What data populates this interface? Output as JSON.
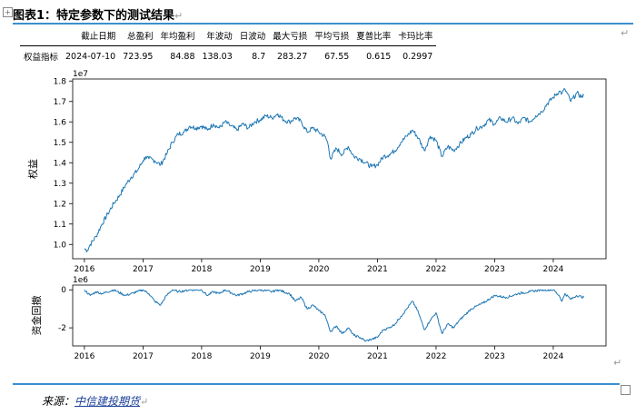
{
  "document": {
    "title": "图表1：特定参数下的测试结果",
    "para_mark": "↵",
    "source_prefix": "来源：",
    "source_org": "中信建投期货"
  },
  "metrics_table": {
    "headers": [
      "截止日期",
      "总盈利",
      "年均盈利",
      "年波动",
      "日波动",
      "最大亏损",
      "平均亏损",
      "夏普比率",
      "卡玛比率"
    ],
    "row_label": "权益指标",
    "values": [
      "2024-07-10",
      "723.95",
      "84.88",
      "138.03",
      "8.7",
      "283.27",
      "67.55",
      "0.615",
      "0.2997"
    ]
  },
  "chart_data": [
    {
      "type": "line",
      "ylabel": "权益",
      "y_scale_label": "1e7",
      "xlim": [
        2015.8,
        2024.9
      ],
      "ylim": [
        0.93,
        1.81
      ],
      "x_ticks": [
        2016,
        2017,
        2018,
        2019,
        2020,
        2021,
        2022,
        2023,
        2024
      ],
      "x_tick_labels": [
        "2016",
        "2017",
        "2018",
        "2019",
        "2020",
        "2021",
        "2022",
        "2023",
        "2024"
      ],
      "y_ticks": [
        1.0,
        1.1,
        1.2,
        1.3,
        1.4,
        1.5,
        1.6,
        1.7,
        1.8
      ],
      "y_tick_labels": [
        "1.0",
        "1.1",
        "1.2",
        "1.3",
        "1.4",
        "1.5",
        "1.6",
        "1.7",
        "1.8"
      ],
      "color": "#1f77b4",
      "grid": false,
      "series": [
        {
          "x": [
            2016.0,
            2016.05,
            2016.1,
            2016.2,
            2016.3,
            2016.4,
            2016.5,
            2016.6,
            2016.7,
            2016.8,
            2016.9,
            2017.0,
            2017.05,
            2017.1,
            2017.2,
            2017.3,
            2017.4,
            2017.5,
            2017.6,
            2017.7,
            2017.8,
            2017.9,
            2018.0,
            2018.1,
            2018.2,
            2018.3,
            2018.4,
            2018.5,
            2018.6,
            2018.7,
            2018.8,
            2018.9,
            2019.0,
            2019.1,
            2019.2,
            2019.3,
            2019.4,
            2019.5,
            2019.6,
            2019.7,
            2019.8,
            2019.9,
            2020.0,
            2020.1,
            2020.15,
            2020.2,
            2020.3,
            2020.4,
            2020.5,
            2020.6,
            2020.7,
            2020.8,
            2020.9,
            2021.0,
            2021.1,
            2021.2,
            2021.3,
            2021.4,
            2021.5,
            2021.6,
            2021.7,
            2021.8,
            2021.9,
            2022.0,
            2022.1,
            2022.2,
            2022.3,
            2022.4,
            2022.5,
            2022.6,
            2022.7,
            2022.8,
            2022.9,
            2023.0,
            2023.1,
            2023.2,
            2023.3,
            2023.4,
            2023.5,
            2023.6,
            2023.7,
            2023.8,
            2023.9,
            2024.0,
            2024.1,
            2024.15,
            2024.2,
            2024.3,
            2024.4,
            2024.5,
            2024.52
          ],
          "values": [
            0.98,
            0.97,
            1.0,
            1.04,
            1.1,
            1.15,
            1.2,
            1.24,
            1.29,
            1.33,
            1.36,
            1.41,
            1.43,
            1.42,
            1.41,
            1.39,
            1.44,
            1.5,
            1.54,
            1.55,
            1.58,
            1.57,
            1.58,
            1.56,
            1.59,
            1.57,
            1.6,
            1.58,
            1.56,
            1.59,
            1.57,
            1.6,
            1.61,
            1.63,
            1.62,
            1.64,
            1.61,
            1.6,
            1.62,
            1.6,
            1.55,
            1.57,
            1.55,
            1.53,
            1.5,
            1.42,
            1.47,
            1.44,
            1.48,
            1.43,
            1.42,
            1.4,
            1.38,
            1.39,
            1.43,
            1.44,
            1.46,
            1.5,
            1.53,
            1.56,
            1.52,
            1.46,
            1.53,
            1.51,
            1.43,
            1.48,
            1.46,
            1.49,
            1.52,
            1.54,
            1.57,
            1.58,
            1.61,
            1.59,
            1.62,
            1.6,
            1.62,
            1.59,
            1.62,
            1.6,
            1.63,
            1.65,
            1.69,
            1.72,
            1.75,
            1.74,
            1.76,
            1.7,
            1.74,
            1.72,
            1.73
          ]
        }
      ]
    },
    {
      "type": "line",
      "ylabel": "资金回撤",
      "y_scale_label": "1e6",
      "xlim": [
        2015.8,
        2024.9
      ],
      "ylim": [
        -2.95,
        0.25
      ],
      "x_ticks": [
        2016,
        2017,
        2018,
        2019,
        2020,
        2021,
        2022,
        2023,
        2024
      ],
      "x_tick_labels": [
        "2016",
        "2017",
        "2018",
        "2019",
        "2020",
        "2021",
        "2022",
        "2023",
        "2024"
      ],
      "y_ticks": [
        0,
        -2
      ],
      "y_tick_labels": [
        "0",
        "-2"
      ],
      "color": "#1f77b4",
      "grid": false,
      "series": [
        {
          "x": [
            2016.0,
            2016.1,
            2016.2,
            2016.3,
            2016.5,
            2016.7,
            2016.9,
            2017.0,
            2017.1,
            2017.2,
            2017.3,
            2017.4,
            2017.5,
            2017.6,
            2017.8,
            2018.0,
            2018.1,
            2018.2,
            2018.3,
            2018.4,
            2018.6,
            2018.8,
            2019.0,
            2019.2,
            2019.3,
            2019.5,
            2019.6,
            2019.7,
            2019.8,
            2019.9,
            2020.0,
            2020.1,
            2020.2,
            2020.3,
            2020.4,
            2020.5,
            2020.6,
            2020.7,
            2020.8,
            2020.9,
            2021.0,
            2021.1,
            2021.2,
            2021.3,
            2021.4,
            2021.5,
            2021.6,
            2021.7,
            2021.8,
            2021.9,
            2022.0,
            2022.1,
            2022.2,
            2022.3,
            2022.4,
            2022.5,
            2022.6,
            2022.8,
            2023.0,
            2023.2,
            2023.4,
            2023.6,
            2023.8,
            2024.0,
            2024.1,
            2024.15,
            2024.2,
            2024.3,
            2024.4,
            2024.52
          ],
          "values": [
            0.0,
            -0.3,
            -0.1,
            -0.2,
            0.0,
            -0.3,
            -0.1,
            0.0,
            -0.2,
            -0.6,
            -0.8,
            -0.3,
            0.0,
            -0.1,
            0.0,
            0.0,
            -0.3,
            -0.1,
            -0.2,
            0.0,
            -0.3,
            -0.1,
            0.0,
            -0.1,
            0.0,
            -0.2,
            -0.6,
            -0.4,
            -1.0,
            -0.8,
            -1.1,
            -1.3,
            -2.2,
            -1.9,
            -2.3,
            -2.0,
            -2.4,
            -2.5,
            -2.7,
            -2.6,
            -2.5,
            -2.1,
            -2.0,
            -1.8,
            -1.4,
            -1.0,
            -0.6,
            -1.2,
            -2.1,
            -1.6,
            -1.2,
            -2.3,
            -1.8,
            -2.0,
            -1.6,
            -1.3,
            -1.0,
            -0.7,
            -0.3,
            -0.4,
            -0.2,
            -0.1,
            0.0,
            0.0,
            -0.3,
            -0.6,
            -0.2,
            -0.5,
            -0.3,
            -0.4
          ]
        }
      ]
    }
  ]
}
